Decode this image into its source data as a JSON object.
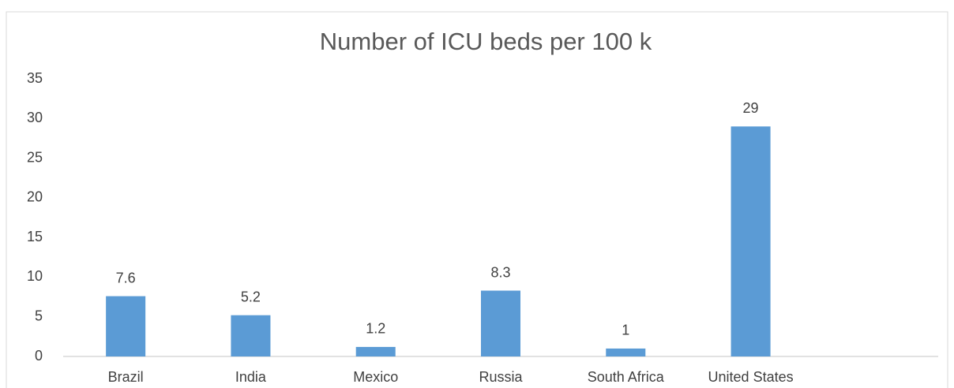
{
  "chart_data": {
    "type": "bar",
    "title": "Number of ICU beds per 100 k",
    "categories": [
      "Brazil",
      "India",
      "Mexico",
      "Russia",
      "South Africa",
      "United States",
      null
    ],
    "values": [
      7.6,
      5.2,
      1.2,
      8.3,
      1,
      29,
      null
    ],
    "color": "#5b9bd5",
    "ylim": [
      0,
      35
    ],
    "yticks": [
      0,
      5,
      10,
      15,
      20,
      25,
      30,
      35
    ],
    "grid": false,
    "data_labels": true
  }
}
